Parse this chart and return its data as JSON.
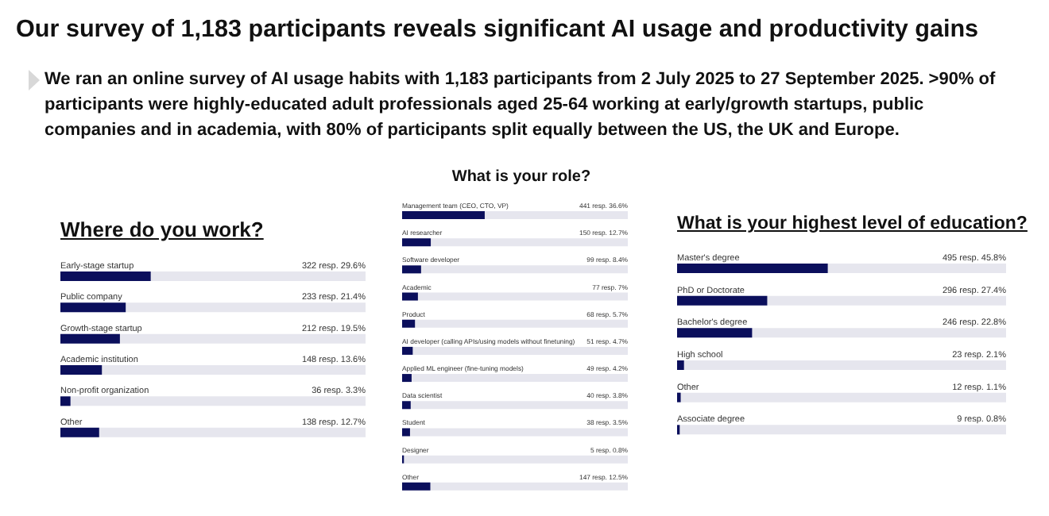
{
  "chart_data": [
    {
      "type": "bar",
      "orientation": "horizontal",
      "title": "Where do you work?",
      "categories": [
        "Early-stage startup",
        "Public company",
        "Growth-stage startup",
        "Academic institution",
        "Non-profit organization",
        "Other"
      ],
      "values": [
        29.6,
        21.4,
        19.5,
        13.6,
        3.3,
        12.7
      ],
      "value_labels": [
        "322 resp.  29.6%",
        "233 resp.  21.4%",
        "212 resp.  19.5%",
        "148 resp.  13.6%",
        "36 resp.  3.3%",
        "138 resp.  12.7%"
      ],
      "color": "#0b0f5c",
      "xlim": [
        0,
        100
      ],
      "tick_labels": false,
      "grid": false,
      "legend": false,
      "annotations": [
        "Our survey of 1,183 participants reveals significant AI usage and productivity gains",
        "We ran an online survey of AI usage habits with 1,183 participants from 2 July 2025 to 27 September 2025. >90% of participants were highly-educated adult professionals aged 25-64 working at early/growth startups, public companies and in academia, with 80% of participants split equally between the US, the UK and Europe."
      ]
    },
    {
      "type": "bar",
      "orientation": "horizontal",
      "title": "What is your role?",
      "categories": [
        "Management team (CEO, CTO, VP)",
        "AI researcher",
        "Software developer",
        "Academic",
        "Product",
        "AI developer (calling APIs/using models without finetuning)",
        "Applied ML engineer (fine-tuning models)",
        "Data scientist",
        "Student",
        "Designer",
        "Other"
      ],
      "values": [
        36.6,
        12.7,
        8.4,
        7,
        5.7,
        4.7,
        4.2,
        3.8,
        3.5,
        0.8,
        12.5
      ],
      "value_labels": [
        "441 resp.  36.6%",
        "150 resp.  12.7%",
        "99 resp.  8.4%",
        "77 resp.  7%",
        "68 resp.  5.7%",
        "51 resp.  4.7%",
        "49 resp.  4.2%",
        "40 resp.  3.8%",
        "38 resp.  3.5%",
        "5 resp.  0.8%",
        "147 resp.  12.5%"
      ],
      "color": "#0b0f5c",
      "xlim": [
        0,
        100
      ],
      "tick_labels": false,
      "grid": false,
      "legend": false
    },
    {
      "type": "bar",
      "orientation": "horizontal",
      "title": "What is your highest level of education?",
      "categories": [
        "Master's degree",
        "PhD or Doctorate",
        "Bachelor's degree",
        "High school",
        "Other",
        "Associate degree"
      ],
      "values": [
        45.8,
        27.4,
        22.8,
        2.1,
        1.1,
        0.8
      ],
      "value_labels": [
        "495 resp.  45.8%",
        "296 resp.  27.4%",
        "246 resp.  22.8%",
        "23 resp.  2.1%",
        "12 resp.  1.1%",
        "9 resp.  0.8%"
      ],
      "color": "#0b0f5c",
      "xlim": [
        0,
        100
      ],
      "tick_labels": false,
      "grid": false,
      "legend": false
    }
  ]
}
